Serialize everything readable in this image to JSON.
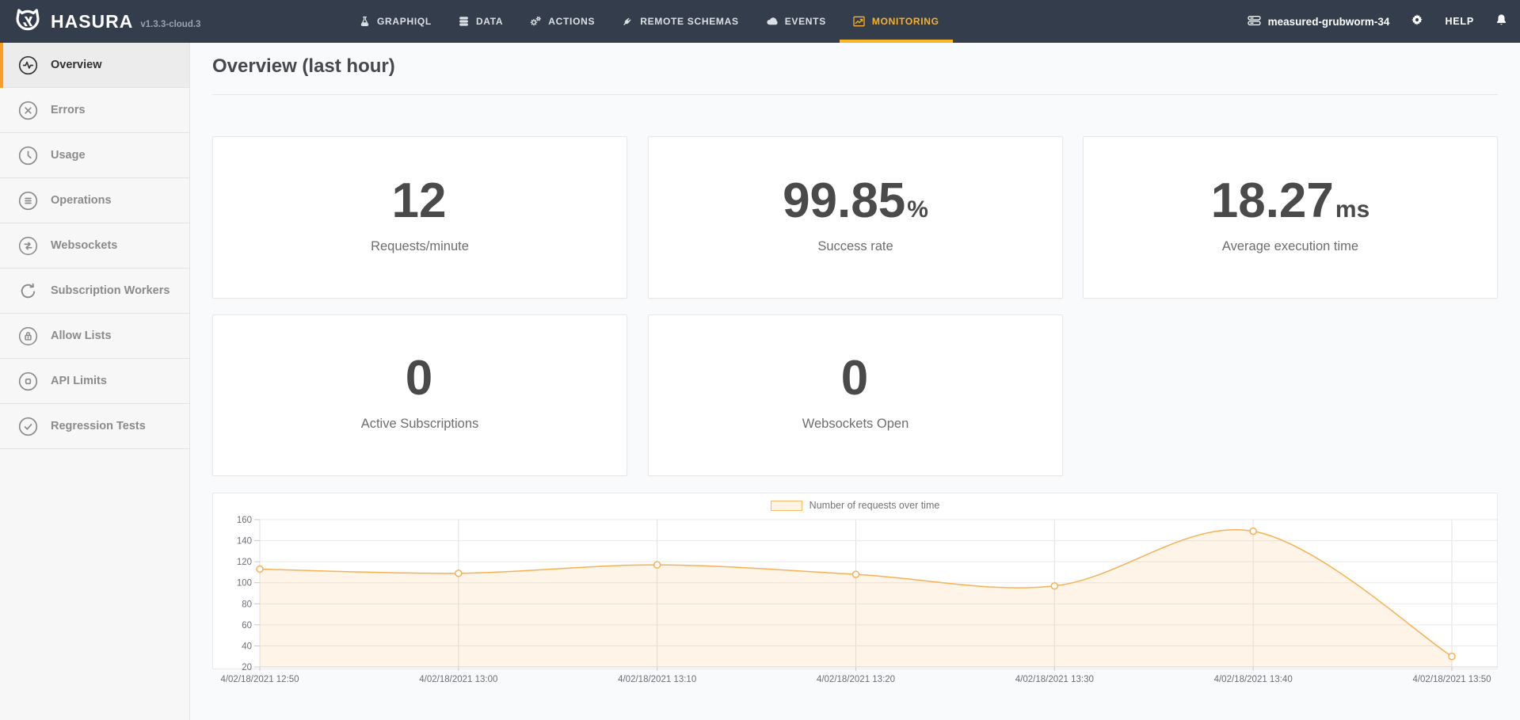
{
  "navbar": {
    "brand": {
      "name": "HASURA",
      "version": "v1.3.3-cloud.3",
      "logo_icon": "hasura-logo"
    },
    "menu": [
      {
        "label": "GRAPHIQL",
        "icon": "flask-icon",
        "active": false
      },
      {
        "label": "DATA",
        "icon": "database-icon",
        "active": false
      },
      {
        "label": "ACTIONS",
        "icon": "gears-icon",
        "active": false
      },
      {
        "label": "REMOTE SCHEMAS",
        "icon": "plug-icon",
        "active": false
      },
      {
        "label": "EVENTS",
        "icon": "cloud-icon",
        "active": false
      },
      {
        "label": "MONITORING",
        "icon": "line-chart-icon",
        "active": true
      }
    ],
    "right": {
      "instance_name": "measured-grubworm-34",
      "instance_icon": "server-icon",
      "settings_icon": "gear-icon",
      "help_label": "HELP",
      "notifications_icon": "bell-icon"
    },
    "colors": {
      "background": "#333d4b",
      "active_gold": "#f7b32e"
    }
  },
  "sidebar": {
    "items": [
      {
        "label": "Overview",
        "icon": "pulse-circle-icon",
        "active": true
      },
      {
        "label": "Errors",
        "icon": "error-circle-icon",
        "active": false
      },
      {
        "label": "Usage",
        "icon": "clock-circle-icon",
        "active": false
      },
      {
        "label": "Operations",
        "icon": "list-circle-icon",
        "active": false
      },
      {
        "label": "Websockets",
        "icon": "arrows-circle-icon",
        "active": false
      },
      {
        "label": "Subscription Workers",
        "icon": "loop-arrow-icon",
        "active": false
      },
      {
        "label": "Allow Lists",
        "icon": "lock-circle-icon",
        "active": false
      },
      {
        "label": "API Limits",
        "icon": "square-circle-icon",
        "active": false
      },
      {
        "label": "Regression Tests",
        "icon": "check-circle-icon",
        "active": false
      }
    ],
    "active_accent": "#f89d2a"
  },
  "main": {
    "title": "Overview (last hour)",
    "stat_cards": [
      {
        "value": "12",
        "unit": "",
        "label": "Requests/minute"
      },
      {
        "value": "99.85",
        "unit": "%",
        "label": "Success rate"
      },
      {
        "value": "18.27",
        "unit": "ms",
        "label": "Average execution time"
      },
      {
        "value": "0",
        "unit": "",
        "label": "Active Subscriptions"
      },
      {
        "value": "0",
        "unit": "",
        "label": "Websockets Open"
      }
    ]
  },
  "chart_data": {
    "type": "area",
    "legend": "Number of requests over time",
    "legend_position": "top-center",
    "x": [
      "4/02/18/2021 12:50",
      "4/02/18/2021 13:00",
      "4/02/18/2021 13:10",
      "4/02/18/2021 13:20",
      "4/02/18/2021 13:30",
      "4/02/18/2021 13:40",
      "4/02/18/2021 13:50"
    ],
    "values": [
      113,
      109,
      117,
      108,
      97,
      149,
      30
    ],
    "ylim": [
      20,
      160
    ],
    "ytick_step": 20,
    "grid": true,
    "line_color": "#f7b155",
    "fill_color": "rgba(247,177,85,0.14)",
    "marker": "circle"
  }
}
